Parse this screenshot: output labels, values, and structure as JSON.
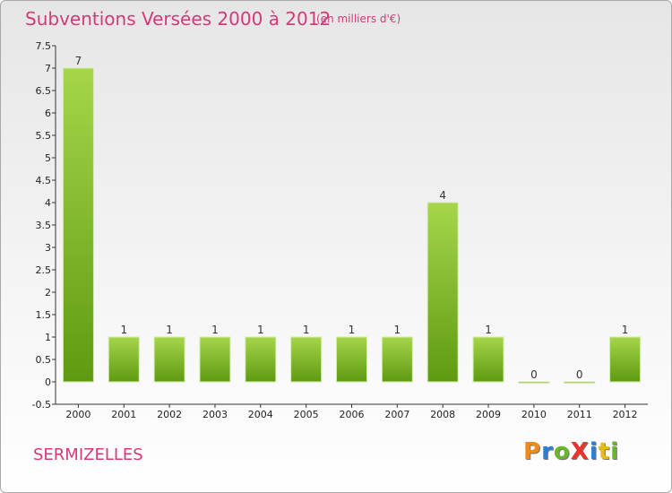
{
  "header": {
    "title": "Subventions Versées 2000 à 2012",
    "unit_note": "(en milliers d'€)"
  },
  "footer": {
    "place_name": "SERMIZELLES",
    "logo_text": "ProXiti"
  },
  "colors": {
    "title": "#d23a7a",
    "bar_light": "#a6d64a",
    "bar_dark": "#5e9a10",
    "logo": [
      "#f08a1c",
      "#2a7fd4",
      "#6cb62c",
      "#e8342c",
      "#2a7fd4",
      "#e8b81c",
      "#6cb62c"
    ]
  },
  "chart_data": {
    "type": "bar",
    "title": "Subventions Versées 2000 à 2012",
    "xlabel": "",
    "ylabel": "",
    "categories": [
      "2000",
      "2001",
      "2002",
      "2003",
      "2004",
      "2005",
      "2006",
      "2007",
      "2008",
      "2009",
      "2010",
      "2011",
      "2012"
    ],
    "values": [
      7,
      1,
      1,
      1,
      1,
      1,
      1,
      1,
      4,
      1,
      0,
      0,
      1
    ],
    "data_labels": [
      "7",
      "1",
      "1",
      "1",
      "1",
      "1",
      "1",
      "1",
      "4",
      "1",
      "0",
      "0",
      "1"
    ],
    "ylim": [
      -0.5,
      7.5
    ],
    "yticks": [
      "-0.5",
      "0",
      "0.5",
      "1",
      "1.5",
      "2",
      "2.5",
      "3",
      "3.5",
      "4",
      "4.5",
      "5",
      "5.5",
      "6",
      "6.5",
      "7",
      "7.5"
    ],
    "grid": false,
    "legend": "none"
  }
}
